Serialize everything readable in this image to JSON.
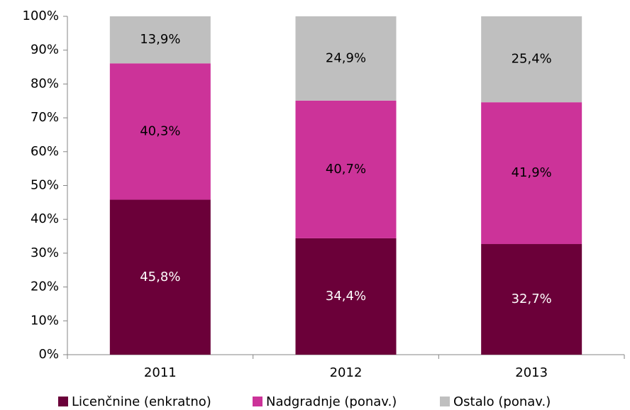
{
  "chart_data": {
    "type": "stacked_bar",
    "categories": [
      "2011",
      "2012",
      "2013"
    ],
    "series": [
      {
        "name": "Licenčnine (enkratno)",
        "color": "#6b0039",
        "values": [
          45.8,
          34.4,
          32.7
        ],
        "value_labels": [
          "45,8%",
          "34,4%",
          "32,7%"
        ]
      },
      {
        "name": "Nadgradnje (ponav.)",
        "color": "#cc3399",
        "values": [
          40.3,
          40.7,
          41.9
        ],
        "value_labels": [
          "40,3%",
          "40,7%",
          "41,9%"
        ]
      },
      {
        "name": "Ostalo (ponav.)",
        "color": "#bfbfbf",
        "values": [
          13.9,
          24.9,
          25.4
        ],
        "value_labels": [
          "13,9%",
          "24,9%",
          "25,4%"
        ]
      }
    ],
    "ylim": [
      0,
      100
    ],
    "yticks": [
      {
        "value": 0,
        "label": "0%"
      },
      {
        "value": 10,
        "label": "10%"
      },
      {
        "value": 20,
        "label": "20%"
      },
      {
        "value": 30,
        "label": "30%"
      },
      {
        "value": 40,
        "label": "40%"
      },
      {
        "value": 50,
        "label": "50%"
      },
      {
        "value": 60,
        "label": "60%"
      },
      {
        "value": 70,
        "label": "70%"
      },
      {
        "value": 80,
        "label": "80%"
      },
      {
        "value": 90,
        "label": "90%"
      },
      {
        "value": 100,
        "label": "100%"
      }
    ],
    "grid": false,
    "legend": "bottom"
  }
}
